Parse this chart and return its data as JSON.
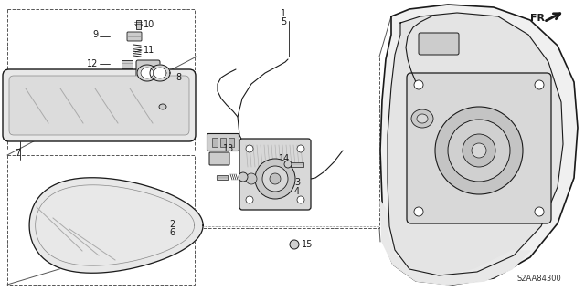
{
  "bg_color": "#ffffff",
  "lc": "#1a1a1a",
  "gray_light": "#e8e8e8",
  "gray_mid": "#d0d0d0",
  "gray_dark": "#b0b0b0",
  "diagram_id": "S2AA84300"
}
